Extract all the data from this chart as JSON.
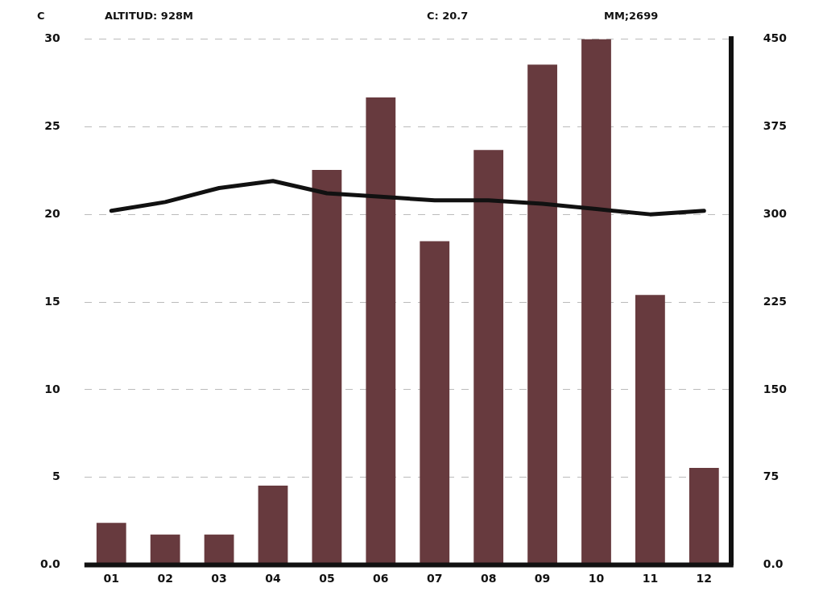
{
  "chart_data": {
    "type": "bar",
    "ylabel": "C",
    "annotations": [
      "ALTITUD: 928M",
      "C: 20.7",
      "MM;2699"
    ],
    "categories": [
      "01",
      "02",
      "03",
      "04",
      "05",
      "06",
      "07",
      "08",
      "09",
      "10",
      "11",
      "12"
    ],
    "series": [
      {
        "axis": "y2",
        "color": "#673a3e",
        "values": [
          36,
          26,
          26,
          68,
          338,
          400,
          277,
          355,
          428,
          450,
          231,
          83
        ]
      },
      {
        "type": "line",
        "axis": "y",
        "color": "#111111",
        "values": [
          20.2,
          20.7,
          21.5,
          21.9,
          21.2,
          21.0,
          20.8,
          20.8,
          20.6,
          20.3,
          20.0,
          20.2
        ]
      }
    ],
    "ylim": [
      0,
      30
    ],
    "yticks": [
      {
        "value": 0,
        "label": "0.0"
      },
      5,
      10,
      15,
      20,
      25,
      30
    ],
    "y2lim": [
      0,
      450
    ],
    "y2ticks": [
      {
        "value": 0,
        "label": "0.0"
      },
      75,
      150,
      225,
      300,
      375,
      450
    ],
    "grid": "y",
    "legend": false,
    "marker": "none",
    "line_style": "solid"
  }
}
